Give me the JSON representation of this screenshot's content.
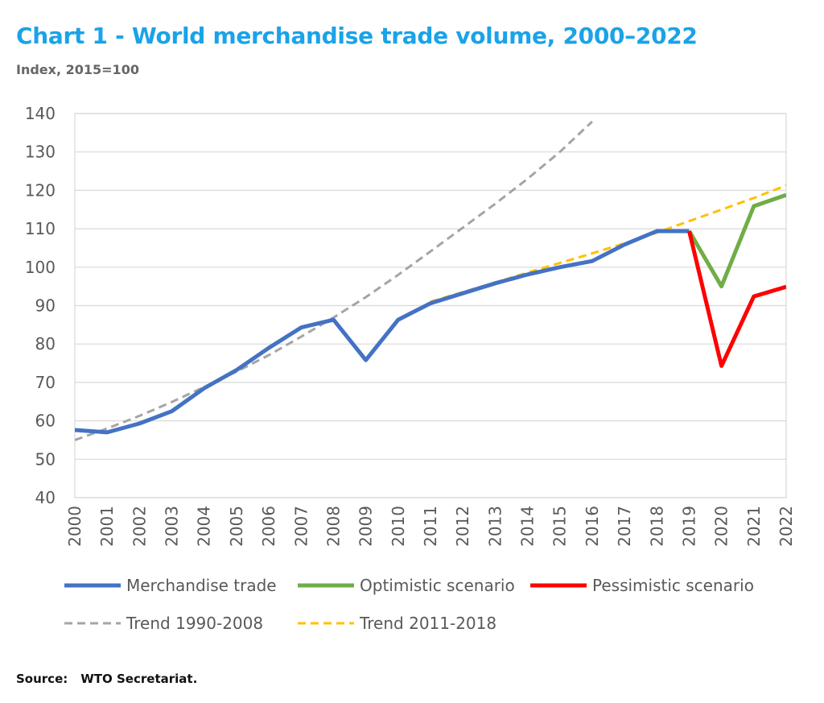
{
  "header": {
    "title": "Chart 1 - World merchandise trade volume, 2000–2022",
    "subtitle": "Index, 2015=100"
  },
  "footer": {
    "source_label": "Source:",
    "source_text": "WTO Secretariat."
  },
  "chart_data": {
    "type": "line",
    "title": "Chart 1 - World merchandise trade volume, 2000–2022",
    "subtitle": "Index, 2015=100",
    "xlabel": "",
    "ylabel": "",
    "ylim": [
      40,
      140
    ],
    "yticks": [
      40,
      50,
      60,
      70,
      80,
      90,
      100,
      110,
      120,
      130,
      140
    ],
    "xticks": [
      "2000",
      "2001",
      "2002",
      "2003",
      "2004",
      "2005",
      "2006",
      "2007",
      "2008",
      "2009",
      "2010",
      "2011",
      "2012",
      "2013",
      "2014",
      "2015",
      "2016",
      "2017",
      "2018",
      "2019",
      "2020",
      "2021",
      "2022"
    ],
    "grid": "horizontal",
    "legend_position": "bottom",
    "series": [
      {
        "name": "Merchandise trade",
        "color": "#4472c4",
        "style": "solid",
        "x": [
          2000,
          2001,
          2002,
          2003,
          2004,
          2005,
          2006,
          2007,
          2008,
          2009,
          2010,
          2011,
          2012,
          2013,
          2014,
          2015,
          2016,
          2017,
          2018,
          2019
        ],
        "y": [
          57.6,
          57.0,
          59.3,
          62.5,
          68.5,
          73.2,
          79.0,
          84.3,
          86.3,
          75.8,
          86.3,
          90.6,
          93.2,
          95.8,
          98.1,
          100.0,
          101.6,
          105.9,
          109.4,
          109.4
        ]
      },
      {
        "name": "Optimistic scenario",
        "color": "#70ad47",
        "style": "solid",
        "x": [
          2019,
          2020,
          2021,
          2022
        ],
        "y": [
          109.4,
          95.0,
          115.9,
          118.8
        ]
      },
      {
        "name": "Pessimistic scenario",
        "color": "#ff0000",
        "style": "solid",
        "x": [
          2019,
          2020,
          2021,
          2022
        ],
        "y": [
          109.4,
          74.3,
          92.4,
          94.9
        ]
      },
      {
        "name": "Trend 1990-2008",
        "color": "#a5a5a5",
        "style": "dashed",
        "x": [
          2000,
          2001,
          2002,
          2003,
          2004,
          2005,
          2006,
          2007,
          2008,
          2009,
          2010,
          2011,
          2012,
          2013,
          2014,
          2015,
          2016
        ],
        "y": [
          55.0,
          58.0,
          61.3,
          64.9,
          68.8,
          72.8,
          77.1,
          81.9,
          86.9,
          92.2,
          98.0,
          104.1,
          110.3,
          116.5,
          123.0,
          130.0,
          137.9
        ]
      },
      {
        "name": "Trend 2011-2018",
        "color": "#ffc000",
        "style": "dashed",
        "x": [
          2011,
          2012,
          2013,
          2014,
          2015,
          2016,
          2017,
          2018,
          2019,
          2020,
          2021,
          2022
        ],
        "y": [
          91.0,
          93.5,
          96.0,
          98.6,
          101.1,
          103.6,
          106.2,
          109.0,
          112.0,
          115.0,
          118.0,
          121.3
        ]
      }
    ]
  }
}
